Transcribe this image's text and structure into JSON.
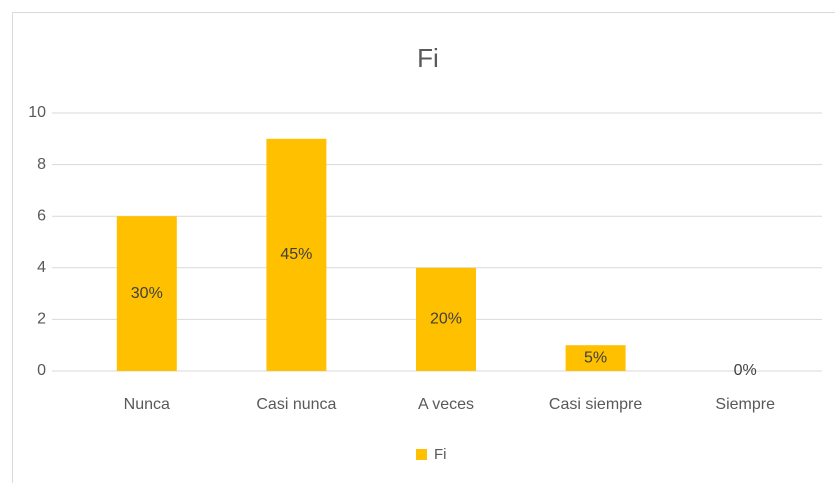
{
  "chart_data": {
    "type": "bar",
    "title": "Fi",
    "categories": [
      "Nunca",
      "Casi nunca",
      "A veces",
      "Casi siempre",
      "Siempre"
    ],
    "series": [
      {
        "name": "Fi",
        "color": "#ffc000",
        "values": [
          6,
          9,
          4,
          1,
          0
        ]
      }
    ],
    "percent_labels": [
      "30%",
      "45%",
      "20%",
      "5%",
      "0%"
    ],
    "ylim": [
      0,
      10
    ],
    "yticks": [
      0,
      2,
      4,
      6,
      8,
      10
    ],
    "grid": true,
    "legend": "bottom"
  }
}
